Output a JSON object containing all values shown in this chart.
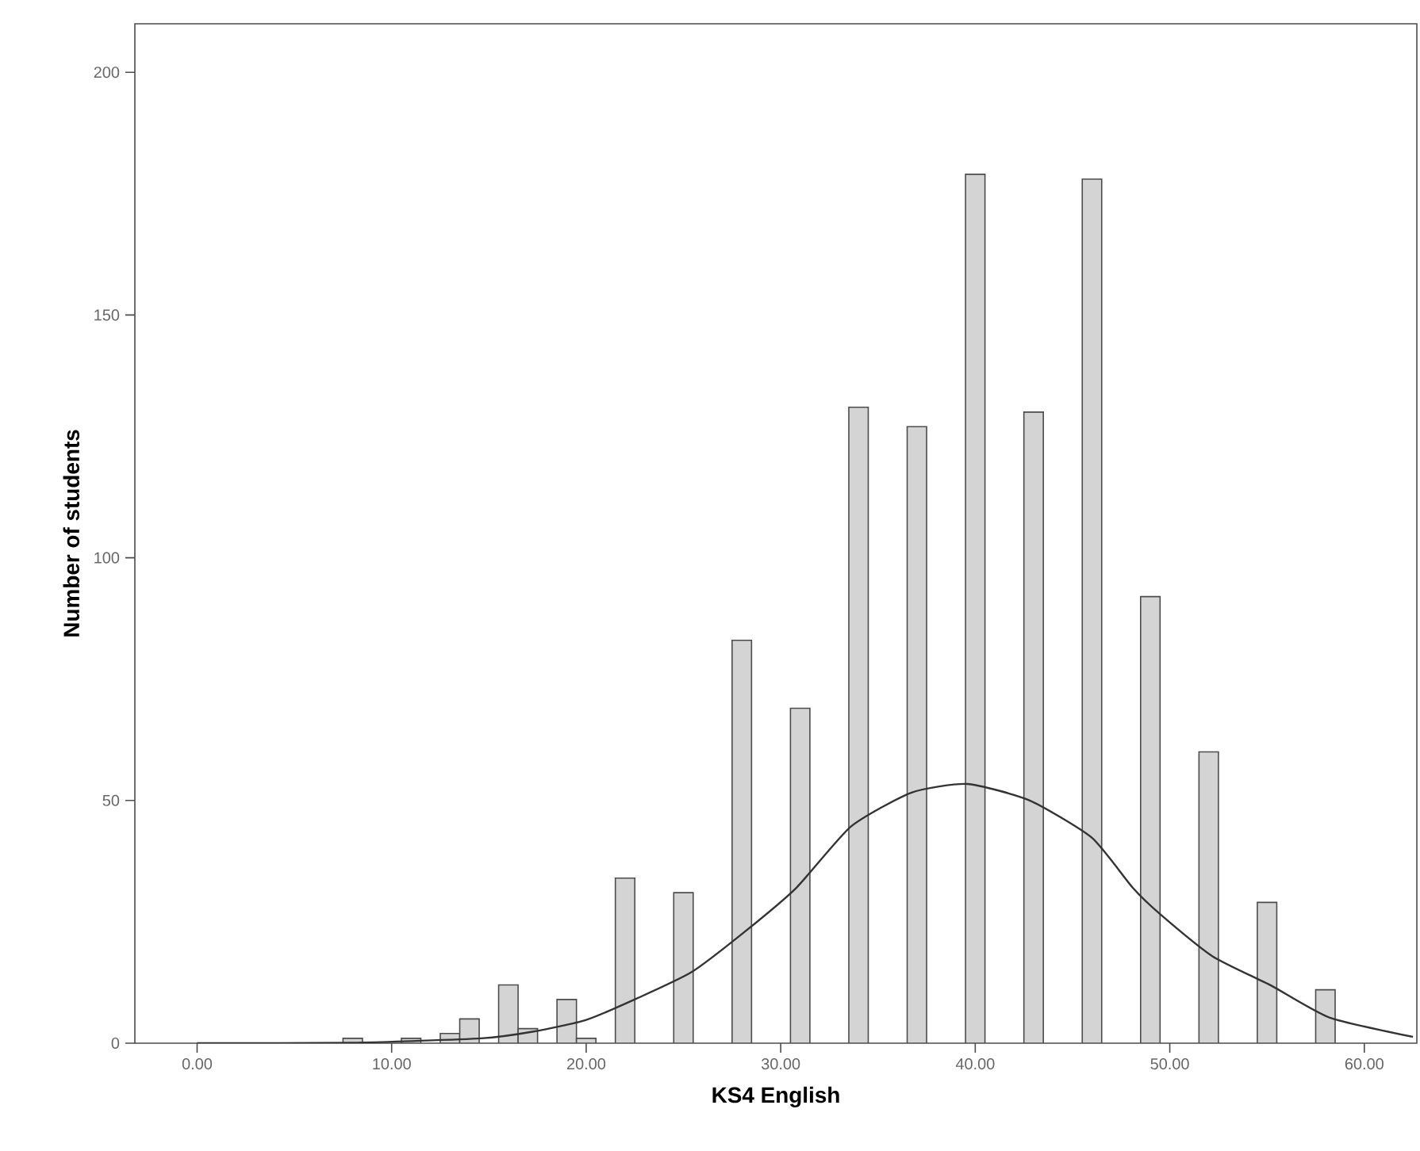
{
  "chart_data": {
    "type": "histogram",
    "xlabel": "KS4 English",
    "ylabel": "Number of students",
    "xlim": [
      -3.2,
      62.7
    ],
    "ylim": [
      0,
      210
    ],
    "xticks": [
      {
        "value": 0,
        "label": "0.00"
      },
      {
        "value": 10,
        "label": "10.00"
      },
      {
        "value": 20,
        "label": "20.00"
      },
      {
        "value": 30,
        "label": "30.00"
      },
      {
        "value": 40,
        "label": "40.00"
      },
      {
        "value": 50,
        "label": "50.00"
      },
      {
        "value": 60,
        "label": "60.00"
      }
    ],
    "yticks": [
      0,
      50,
      100,
      150,
      200
    ],
    "bins": [
      7.5,
      8.5,
      9.5,
      10.5,
      11.5,
      12.5,
      13.5,
      14.5,
      15.5,
      16.5,
      17.5,
      18.5,
      19.5,
      20.5,
      21.5,
      22.5,
      23.5,
      24.5,
      25.5,
      26.5,
      27.5,
      28.5,
      29.5,
      30.5,
      31.5,
      32.5,
      33.5,
      34.5,
      35.5,
      36.5,
      37.5,
      38.5,
      39.5,
      40.5,
      41.5,
      42.5,
      43.5,
      44.5,
      45.5,
      46.5,
      47.5,
      48.5,
      49.5,
      50.5,
      51.5,
      52.5,
      53.5,
      54.5,
      55.5,
      56.5,
      57.5,
      58.5
    ],
    "values": [
      1,
      0,
      0,
      1,
      0,
      2,
      5,
      0,
      12,
      3,
      0,
      9,
      1,
      0,
      34,
      0,
      0,
      31,
      0,
      0,
      83,
      0,
      0,
      69,
      0,
      0,
      131,
      0,
      0,
      127,
      0,
      0,
      179,
      0,
      0,
      130,
      0,
      0,
      178,
      0,
      0,
      92,
      0,
      0,
      60,
      0,
      0,
      29,
      0,
      0,
      11
    ],
    "color": "#d4d4d4",
    "series": [
      {
        "type": "line",
        "color": "#333333",
        "x": [
          0,
          8,
          14.6,
          17.3,
          20.0,
          22.6,
          25.4,
          28.1,
          30.8,
          33.6,
          36.7,
          39.6,
          42.8,
          46.0,
          48.1,
          49.5,
          52.2,
          55.2,
          58.2,
          62.5
        ],
        "values": [
          0,
          0.1,
          1,
          2.4,
          4.8,
          9.2,
          14.6,
          22.8,
          32,
          44.6,
          51.6,
          53.4,
          50,
          42.3,
          32,
          26.6,
          17.9,
          11.9,
          5.3,
          1.3
        ]
      }
    ]
  }
}
